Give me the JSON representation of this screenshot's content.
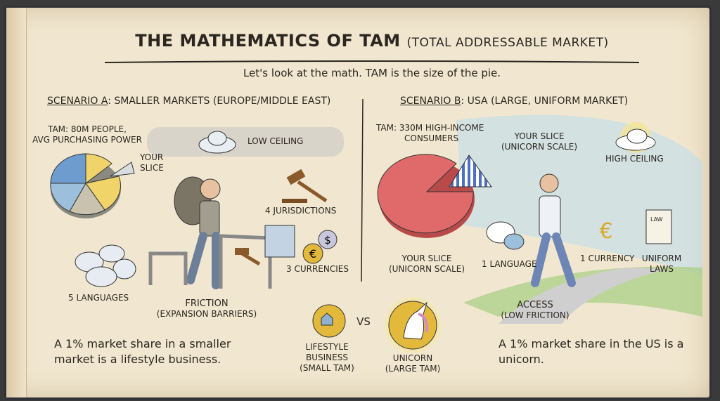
{
  "title": {
    "main": "THE MATHEMATICS OF TAM",
    "paren": "(TOTAL ADDRESSABLE MARKET)"
  },
  "subtitle": "Let's look at the math. TAM is the size of the pie.",
  "scenario_a": {
    "prefix": "SCENARIO A",
    "header": ": SMALLER MARKETS (EUROPE/MIDDLE EAST)",
    "tam": [
      "TAM: 80M PEOPLE,",
      "AVG PURCHASING POWER"
    ],
    "your_slice": [
      "YOUR",
      "SLICE"
    ],
    "ceiling": "LOW CEILING",
    "jurisdictions": "4 JURISDICTIONS",
    "currencies": "3 CURRENCIES",
    "languages": "5 LANGUAGES",
    "friction": "FRICTION",
    "friction_sub": "(EXPANSION BARRIERS)",
    "conclusion": "A 1% market share in a smaller market is a lifestyle business."
  },
  "scenario_b": {
    "prefix": "SCENARIO B",
    "header": ": USA (LARGE, UNIFORM MARKET)",
    "tam": [
      "TAM: 330M HIGH-INCOME",
      "CONSUMERS"
    ],
    "your_slice_top": [
      "YOUR SLICE",
      "(UNICORN SCALE)"
    ],
    "your_slice_bottom": [
      "YOUR SLICE",
      "(UNICORN SCALE)"
    ],
    "ceiling": "HIGH CEILING",
    "language": "1 LANGUAGE",
    "currency": "1 CURRENCY",
    "laws": [
      "UNIFORM",
      "LAWS"
    ],
    "law_doc": "LAW",
    "access": "ACCESS",
    "access_sub": "(LOW FRICTION)",
    "conclusion": "A 1% market share in the US is a unicorn."
  },
  "comparison": {
    "lifestyle": [
      "LIFESTYLE",
      "BUSINESS",
      "(SMALL TAM)"
    ],
    "vs": "VS",
    "unicorn": [
      "UNICORN",
      "(LARGE TAM)"
    ]
  },
  "colors": {
    "page": "#f1e7d0",
    "pie_a_blue": "#6f9ccf",
    "pie_a_yellow": "#f0d46a",
    "pie_b_red": "#e06a6a",
    "coin": "#e3b93c",
    "sky": "#bcdcef",
    "grass": "#a9cf86"
  }
}
